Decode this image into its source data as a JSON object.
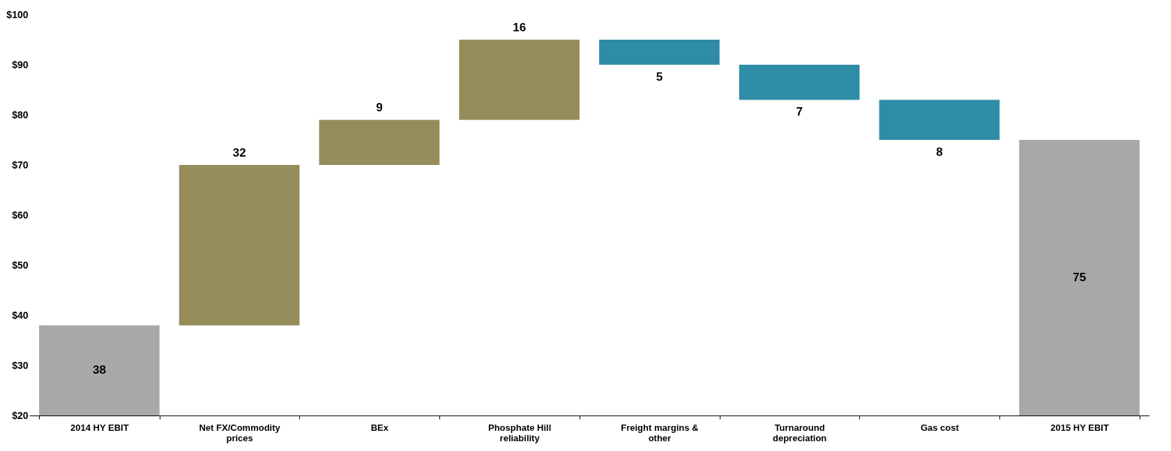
{
  "chart_data": {
    "type": "bar",
    "categories": [
      "2014 HY EBIT",
      "Net FX/Commodity prices",
      "BEx",
      "Phosphate Hill reliability",
      "Freight margins & other",
      "Turnaround depreciation",
      "Gas cost",
      "2015 HY EBIT"
    ],
    "values": [
      38,
      32,
      9,
      16,
      -5,
      -7,
      -8,
      75
    ],
    "base": [
      null,
      38,
      70,
      79,
      95,
      90,
      83,
      null
    ],
    "value_labels": [
      "38",
      "32",
      "9",
      "16",
      "5",
      "7",
      "8",
      "75"
    ],
    "colors": [
      "#a8a8a8",
      "#958c5a",
      "#958c5a",
      "#958c5a",
      "#2e8ca6",
      "#2e8ca6",
      "#2e8ca6",
      "#a8a8a8"
    ],
    "ylim": [
      20,
      100
    ],
    "yticks": [
      {
        "value": 20,
        "label": "$20"
      },
      {
        "value": 30,
        "label": "$30"
      },
      {
        "value": 40,
        "label": "$40"
      },
      {
        "value": 50,
        "label": "$50"
      },
      {
        "value": 60,
        "label": "$60"
      },
      {
        "value": 70,
        "label": "$70"
      },
      {
        "value": 80,
        "label": "$80"
      },
      {
        "value": 90,
        "label": "$90"
      },
      {
        "value": 100,
        "label": "$100"
      }
    ],
    "grid": false
  }
}
